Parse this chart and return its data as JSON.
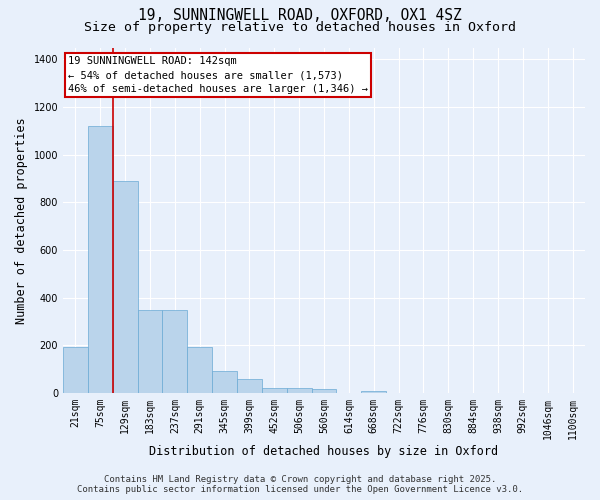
{
  "title_line1": "19, SUNNINGWELL ROAD, OXFORD, OX1 4SZ",
  "title_line2": "Size of property relative to detached houses in Oxford",
  "xlabel": "Distribution of detached houses by size in Oxford",
  "ylabel": "Number of detached properties",
  "bar_color": "#bad4eb",
  "bar_edge_color": "#6aaad4",
  "background_color": "#e8f0fb",
  "fig_background_color": "#e8f0fb",
  "grid_color": "#ffffff",
  "categories": [
    "21sqm",
    "75sqm",
    "129sqm",
    "183sqm",
    "237sqm",
    "291sqm",
    "345sqm",
    "399sqm",
    "452sqm",
    "506sqm",
    "560sqm",
    "614sqm",
    "668sqm",
    "722sqm",
    "776sqm",
    "830sqm",
    "884sqm",
    "938sqm",
    "992sqm",
    "1046sqm",
    "1100sqm"
  ],
  "values": [
    195,
    1120,
    890,
    350,
    350,
    195,
    93,
    57,
    20,
    20,
    15,
    0,
    10,
    0,
    0,
    0,
    0,
    0,
    0,
    0,
    0
  ],
  "ylim": [
    0,
    1450
  ],
  "yticks": [
    0,
    200,
    400,
    600,
    800,
    1000,
    1200,
    1400
  ],
  "vline_index": 2,
  "vline_color": "#cc0000",
  "annotation_text": "19 SUNNINGWELL ROAD: 142sqm\n← 54% of detached houses are smaller (1,573)\n46% of semi-detached houses are larger (1,346) →",
  "footer_line1": "Contains HM Land Registry data © Crown copyright and database right 2025.",
  "footer_line2": "Contains public sector information licensed under the Open Government Licence v3.0.",
  "title_fontsize": 10.5,
  "subtitle_fontsize": 9.5,
  "axis_label_fontsize": 8.5,
  "tick_fontsize": 7,
  "annotation_fontsize": 7.5,
  "footer_fontsize": 6.5
}
